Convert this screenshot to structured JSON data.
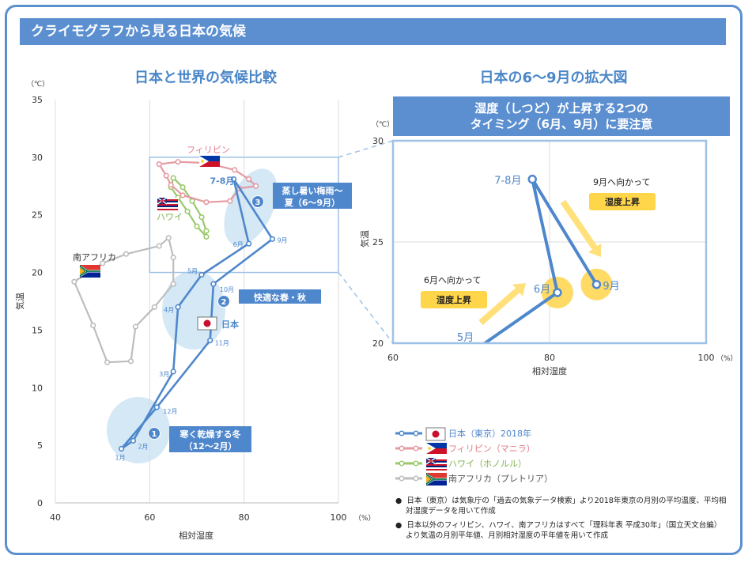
{
  "header": {
    "title": "クライモグラフから見る日本の気候"
  },
  "left_title": "日本と世界の気候比較",
  "right_title": "日本の6～9月の拡大図",
  "right_note": {
    "line1": "湿度（しつど）が上昇する2つの",
    "line2": "タイミング（6月、9月）に要注意"
  },
  "colors": {
    "japan": "#4f87cc",
    "philippines": "#e59aa2",
    "hawaii": "#9ac96a",
    "south_africa": "#bdbdbd",
    "accent": "#5b8fd0",
    "bubble": "#d4e8f5",
    "yellow": "#ffd54a"
  },
  "chart_data": [
    {
      "type": "line",
      "xlabel": "相対湿度",
      "ylabel": "気温",
      "xunit": "（%）",
      "yunit": "（℃）",
      "xlim": [
        40,
        100
      ],
      "ylim": [
        0,
        35
      ],
      "xticks": [
        "40",
        "60",
        "80",
        "100"
      ],
      "yticks": [
        "0",
        "5",
        "10",
        "15",
        "20",
        "25",
        "30",
        "35"
      ],
      "series": [
        {
          "name": "日本（東京）2018年",
          "key": "japan",
          "color": "#4f87cc",
          "labels": [
            "1月",
            "2月",
            "3月",
            "4月",
            "5月",
            "6月",
            "7-8月",
            "9月",
            "10月",
            "11月",
            "12月"
          ],
          "points": [
            [
              54,
              4.7
            ],
            [
              56.5,
              5.4
            ],
            [
              65,
              11.4
            ],
            [
              66,
              17
            ],
            [
              71,
              19.8
            ],
            [
              81,
              22.5
            ],
            [
              77.8,
              28.1
            ],
            [
              86,
              22.9
            ],
            [
              73.5,
              19
            ],
            [
              72.8,
              14.1
            ],
            [
              61.5,
              8.3
            ]
          ]
        },
        {
          "name": "フィリピン（マニラ）",
          "key": "philippines",
          "color": "#e59aa2",
          "points": [
            [
              62,
              29.4
            ],
            [
              66,
              29.6
            ],
            [
              72,
              29.5
            ],
            [
              78,
              28.9
            ],
            [
              81,
              28.1
            ],
            [
              82.5,
              27.5
            ],
            [
              79,
              27.3
            ],
            [
              77,
              26.2
            ],
            [
              72,
              26.1
            ],
            [
              67,
              26.7
            ],
            [
              64.5,
              27.6
            ],
            [
              63.5,
              28.4
            ]
          ]
        },
        {
          "name": "ハワイ（ホノルル）",
          "key": "hawaii",
          "color": "#9ac96a",
          "points": [
            [
              64.5,
              27.4
            ],
            [
              66,
              26.5
            ],
            [
              68,
              25.3
            ],
            [
              70,
              24
            ],
            [
              72,
              23.1
            ],
            [
              72,
              23.6
            ],
            [
              71,
              24.8
            ],
            [
              69,
              26.2
            ],
            [
              67,
              27.4
            ],
            [
              65,
              28.2
            ]
          ]
        },
        {
          "name": "南アフリカ（プレトリア）",
          "key": "south_africa",
          "color": "#bdbdbd",
          "points": [
            [
              64,
              23
            ],
            [
              65,
              21.3
            ],
            [
              65,
              19
            ],
            [
              61,
              17
            ],
            [
              57,
              15.3
            ],
            [
              56,
              12.3
            ],
            [
              51,
              12.2
            ],
            [
              48,
              15.4
            ],
            [
              44,
              19.2
            ],
            [
              50,
              20.8
            ],
            [
              55,
              21.6
            ],
            [
              62,
              22.3
            ]
          ]
        }
      ],
      "annotations": {
        "winter": {
          "num": "1",
          "line1": "寒く乾燥する冬",
          "line2": "（12～2月）"
        },
        "spring_autumn": {
          "num": "2",
          "text": "快適な春・秋"
        },
        "summer": {
          "num": "3",
          "line1": "蒸し暑い梅雨～",
          "line2": "夏（6～9月）"
        },
        "label_japan": "日本",
        "label_philippines": "フィリピン",
        "label_hawaii": "ハワイ",
        "label_sa": "南アフリカ"
      }
    },
    {
      "type": "line",
      "xlabel": "相対湿度",
      "ylabel": "気温",
      "xunit": "（%）",
      "yunit": "（℃）",
      "xlim": [
        60,
        100
      ],
      "ylim": [
        20,
        30
      ],
      "xticks": [
        "60",
        "80",
        "100"
      ],
      "yticks": [
        "20",
        "25",
        "30"
      ],
      "series": [
        {
          "name": "日本（東京）2018年",
          "labels": [
            "5月",
            "6月",
            "7-8月",
            "9月"
          ],
          "points": [
            [
              71,
              19.8
            ],
            [
              81,
              22.5
            ],
            [
              77.8,
              28.1
            ],
            [
              86,
              22.9
            ]
          ]
        }
      ],
      "callouts": {
        "june_text": "6月へ向かって",
        "june_tag": "湿度上昇",
        "sept_text": "9月へ向かって",
        "sept_tag": "湿度上昇"
      }
    }
  ],
  "notes": [
    "日本（東京）は気象庁の「過去の気象データ検索」より2018年東京の月別の平均温度、平均相対湿度データを用いて作成",
    "日本以外のフィリピン、ハワイ、南アフリカはすべて「理科年表 平成30年」（国立天文台編）より気温の月別平年値、月別相対湿度の平年値を用いて作成"
  ]
}
